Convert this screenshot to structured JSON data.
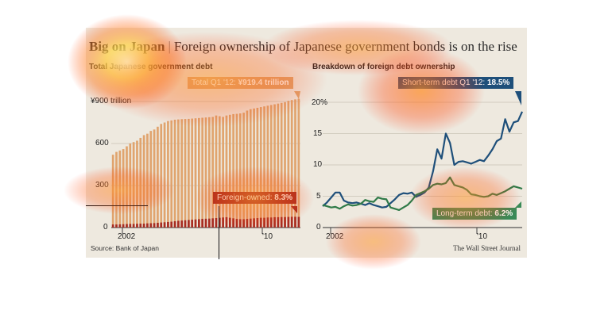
{
  "headline": {
    "kicker": "Big on Japan",
    "separator": "|",
    "text": "Foreign ownership of Japanese government bonds is on the rise"
  },
  "source": "Source: Bank of Japan",
  "publisher": "The Wall Street Journal",
  "colors": {
    "background": "#eee9df",
    "total_bar": "#e0a46e",
    "foreign_bar": "#a72d22",
    "short_term_line": "#1e4f7a",
    "long_term_line": "#2f7a48",
    "total_callout": "#e0a46e",
    "foreign_callout": "#a72d22",
    "short_callout": "#1e4f7a",
    "long_callout": "#3a8a57"
  },
  "chart_data": [
    {
      "type": "bar",
      "title": "Total Japanese government debt",
      "yunit_label": "¥900 trillion",
      "ylim": [
        0,
        900
      ],
      "yticks": [
        0,
        300,
        600,
        900
      ],
      "ytick_labels": [
        "0",
        "300",
        "600",
        "¥900 trillion"
      ],
      "xtick_labels": [
        "2002",
        "'10"
      ],
      "grid": true,
      "series": [
        {
          "name": "Total",
          "values": [
            520,
            540,
            550,
            560,
            580,
            600,
            610,
            620,
            640,
            660,
            670,
            690,
            700,
            720,
            740,
            750,
            760,
            765,
            770,
            772,
            774,
            775,
            776,
            778,
            780,
            782,
            784,
            786,
            788,
            790,
            800,
            795,
            790,
            800,
            805,
            810,
            812,
            815,
            820,
            835,
            845,
            850,
            855,
            860,
            865,
            870,
            875,
            880,
            885,
            890,
            895,
            905,
            910,
            915,
            919.4
          ]
        },
        {
          "name": "Foreign-owned",
          "values": [
            22,
            22,
            23,
            24,
            25,
            26,
            26,
            27,
            28,
            28,
            30,
            31,
            32,
            34,
            36,
            38,
            40,
            42,
            45,
            48,
            50,
            52,
            54,
            56,
            58,
            60,
            62,
            63,
            64,
            66,
            68,
            70,
            72,
            74,
            70,
            66,
            62,
            60,
            60,
            62,
            64,
            66,
            68,
            70,
            70,
            72,
            72,
            74,
            74,
            75,
            75,
            76,
            77,
            77,
            76.3
          ]
        }
      ],
      "annotations": [
        {
          "label": "Total Q1 '12:",
          "value": "¥919.4 trillion"
        },
        {
          "label": "Foreign-owned:",
          "value": "8.3%"
        }
      ]
    },
    {
      "type": "line",
      "title": "Breakdown of foreign debt ownership",
      "ylim": [
        0,
        20
      ],
      "yticks": [
        0,
        5,
        10,
        15,
        20
      ],
      "ytick_labels": [
        "0",
        "5",
        "10",
        "15",
        "20%"
      ],
      "xtick_labels": [
        "2002",
        "'10"
      ],
      "grid": true,
      "series": [
        {
          "name": "Short-term debt",
          "values": [
            3.4,
            4.0,
            4.8,
            5.6,
            5.6,
            4.3,
            4.0,
            3.9,
            4.0,
            3.8,
            3.6,
            3.9,
            3.6,
            3.4,
            3.2,
            3.3,
            3.9,
            4.5,
            5.2,
            5.5,
            5.4,
            5.6,
            4.9,
            5.2,
            5.6,
            6.4,
            9.0,
            12.5,
            11.0,
            15.0,
            13.5,
            10.0,
            10.5,
            10.6,
            10.4,
            10.2,
            10.5,
            10.8,
            10.6,
            11.5,
            12.5,
            13.8,
            14.2,
            17.3,
            15.3,
            16.8,
            17.0,
            18.5
          ]
        },
        {
          "name": "Long-term debt",
          "values": [
            3.6,
            3.4,
            3.2,
            3.3,
            3.0,
            3.4,
            3.7,
            3.5,
            3.6,
            3.8,
            4.4,
            4.2,
            4.1,
            4.8,
            4.6,
            4.5,
            3.2,
            3.0,
            2.8,
            3.2,
            3.6,
            4.3,
            5.2,
            5.5,
            5.8,
            6.2,
            6.8,
            7.0,
            6.9,
            7.1,
            8.0,
            6.8,
            6.6,
            6.4,
            6.0,
            5.3,
            5.2,
            5.0,
            4.9,
            5.0,
            5.4,
            5.2,
            5.5,
            5.8,
            6.2,
            6.6,
            6.4,
            6.2
          ]
        }
      ],
      "annotations": [
        {
          "label": "Short-term debt Q1 '12:",
          "value": "18.5%"
        },
        {
          "label": "Long-term debt:",
          "value": "6.2%"
        }
      ]
    }
  ]
}
